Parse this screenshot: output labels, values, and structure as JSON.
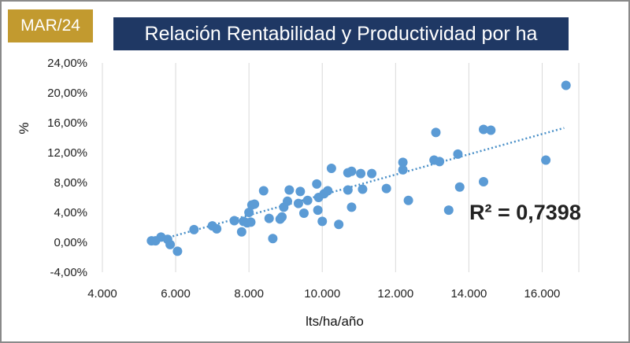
{
  "badge": "MAR/24",
  "chart_data": {
    "type": "scatter",
    "title": "Relación Rentabilidad y Productividad por ha",
    "xlabel": "lts/ha/año",
    "ylabel": "%",
    "xlim": [
      4000,
      17000
    ],
    "ylim": [
      -4,
      24
    ],
    "x_ticks": [
      4000,
      6000,
      8000,
      10000,
      12000,
      14000,
      16000
    ],
    "x_tick_labels": [
      "4.000",
      "6.000",
      "8.000",
      "10.000",
      "12.000",
      "14.000",
      "16.000"
    ],
    "y_ticks": [
      -4,
      0,
      4,
      8,
      12,
      16,
      20,
      24
    ],
    "y_tick_labels": [
      "-4,00%",
      "0,00%",
      "4,00%",
      "8,00%",
      "12,00%",
      "16,00%",
      "20,00%",
      "24,00%"
    ],
    "grid": "vertical",
    "trendline": {
      "type": "linear",
      "x": [
        5400,
        16600
      ],
      "y": [
        0.1,
        15.3
      ],
      "r2_label": "R² = 0,7398"
    },
    "marker_color": "#5b9bd5",
    "trend_color": "#4a90c8",
    "points": [
      {
        "x": 5340,
        "y": 0.2
      },
      {
        "x": 5450,
        "y": 0.2
      },
      {
        "x": 5600,
        "y": 0.7
      },
      {
        "x": 5780,
        "y": 0.4
      },
      {
        "x": 5850,
        "y": -0.3
      },
      {
        "x": 6050,
        "y": -1.2
      },
      {
        "x": 6500,
        "y": 1.7
      },
      {
        "x": 7000,
        "y": 2.2
      },
      {
        "x": 7120,
        "y": 1.8
      },
      {
        "x": 7600,
        "y": 2.9
      },
      {
        "x": 7800,
        "y": 1.4
      },
      {
        "x": 7850,
        "y": 2.8
      },
      {
        "x": 7950,
        "y": 2.6
      },
      {
        "x": 8000,
        "y": 4.0
      },
      {
        "x": 8050,
        "y": 2.7
      },
      {
        "x": 8080,
        "y": 5.0
      },
      {
        "x": 8150,
        "y": 5.1
      },
      {
        "x": 8400,
        "y": 6.9
      },
      {
        "x": 8550,
        "y": 3.2
      },
      {
        "x": 8650,
        "y": 0.5
      },
      {
        "x": 8850,
        "y": 3.1
      },
      {
        "x": 8900,
        "y": 3.4
      },
      {
        "x": 8950,
        "y": 4.7
      },
      {
        "x": 9050,
        "y": 5.5
      },
      {
        "x": 9100,
        "y": 7.0
      },
      {
        "x": 9350,
        "y": 5.2
      },
      {
        "x": 9400,
        "y": 6.8
      },
      {
        "x": 9500,
        "y": 3.9
      },
      {
        "x": 9600,
        "y": 5.6
      },
      {
        "x": 9850,
        "y": 7.8
      },
      {
        "x": 9880,
        "y": 4.3
      },
      {
        "x": 9900,
        "y": 6.0
      },
      {
        "x": 10000,
        "y": 2.8
      },
      {
        "x": 10050,
        "y": 6.5
      },
      {
        "x": 10150,
        "y": 6.9
      },
      {
        "x": 10250,
        "y": 9.9
      },
      {
        "x": 10450,
        "y": 2.4
      },
      {
        "x": 10700,
        "y": 7.0
      },
      {
        "x": 10700,
        "y": 9.3
      },
      {
        "x": 10800,
        "y": 9.5
      },
      {
        "x": 10800,
        "y": 4.7
      },
      {
        "x": 11050,
        "y": 9.2
      },
      {
        "x": 11100,
        "y": 7.1
      },
      {
        "x": 11350,
        "y": 9.2
      },
      {
        "x": 11750,
        "y": 7.2
      },
      {
        "x": 12200,
        "y": 10.7
      },
      {
        "x": 12200,
        "y": 9.7
      },
      {
        "x": 12350,
        "y": 5.6
      },
      {
        "x": 13050,
        "y": 11.0
      },
      {
        "x": 13100,
        "y": 14.7
      },
      {
        "x": 13200,
        "y": 10.8
      },
      {
        "x": 13450,
        "y": 4.3
      },
      {
        "x": 13700,
        "y": 11.8
      },
      {
        "x": 13750,
        "y": 7.4
      },
      {
        "x": 14400,
        "y": 15.1
      },
      {
        "x": 14400,
        "y": 8.1
      },
      {
        "x": 14600,
        "y": 15.0
      },
      {
        "x": 16100,
        "y": 11.0
      },
      {
        "x": 16650,
        "y": 21.0
      }
    ]
  }
}
